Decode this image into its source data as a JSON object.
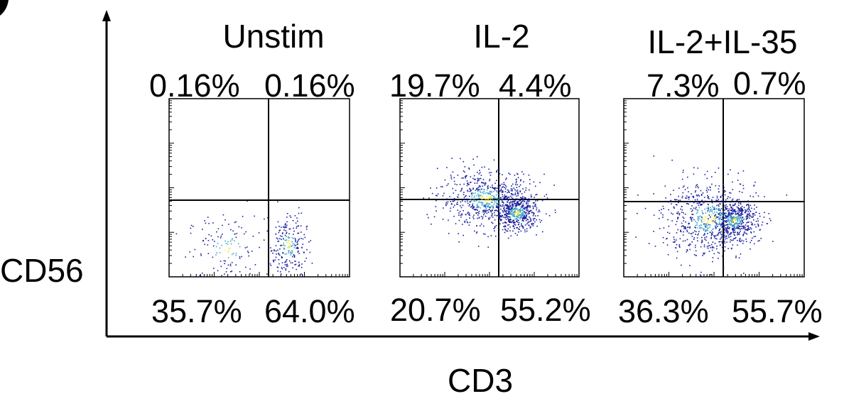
{
  "chart_data": {
    "type": "scatter",
    "subtype": "flow-cytometry-quadrant-dot-plots",
    "xlabel": "CD3",
    "ylabel": "CD56",
    "panels": [
      {
        "title": "Unstim",
        "quadrants": {
          "upper_left": "0.16%",
          "upper_right": "0.16%",
          "lower_left": "35.7%",
          "lower_right": "64.0%"
        },
        "clusters": [
          {
            "cx": 0.32,
            "cy": 0.16,
            "sx": 0.11,
            "sy": 0.09,
            "n": 130
          },
          {
            "cx": 0.66,
            "cy": 0.18,
            "sx": 0.05,
            "sy": 0.09,
            "n": 230
          }
        ]
      },
      {
        "title": "IL-2",
        "quadrants": {
          "upper_left": "19.7%",
          "upper_right": "4.4%",
          "lower_left": "20.7%",
          "lower_right": "55.2%"
        },
        "clusters": [
          {
            "cx": 0.48,
            "cy": 0.44,
            "sx": 0.13,
            "sy": 0.08,
            "n": 650
          },
          {
            "cx": 0.65,
            "cy": 0.36,
            "sx": 0.06,
            "sy": 0.05,
            "n": 500
          }
        ]
      },
      {
        "title": "IL-2+IL-35",
        "quadrants": {
          "upper_left": "7.3%",
          "upper_right": "0.7%",
          "lower_left": "36.3%",
          "lower_right": "55.7%"
        },
        "clusters": [
          {
            "cx": 0.47,
            "cy": 0.33,
            "sx": 0.13,
            "sy": 0.11,
            "n": 700
          },
          {
            "cx": 0.61,
            "cy": 0.32,
            "sx": 0.06,
            "sy": 0.05,
            "n": 420
          }
        ]
      }
    ]
  },
  "colors": {
    "frame": "#000000",
    "axis": "#000000",
    "dot_low": "#1a1f9c",
    "dot_mid": "#3fa6c9",
    "dot_high": "#e8e84a"
  }
}
